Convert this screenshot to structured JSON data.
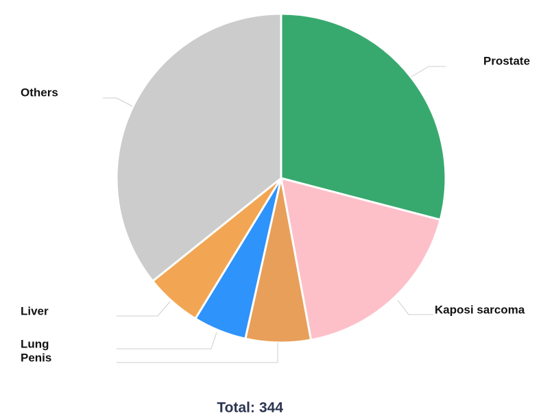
{
  "chart_data": {
    "type": "pie",
    "categories": [
      "Prostate",
      "Kaposi sarcoma",
      "Penis",
      "Lung",
      "Liver",
      "Others"
    ],
    "values": [
      100,
      62,
      22,
      18,
      19,
      123
    ],
    "colors": [
      "#38a96e",
      "#fdc0c9",
      "#e89f5a",
      "#2e93fa",
      "#f2a653",
      "#cccccc"
    ],
    "total_label": "Total:",
    "total": 344
  }
}
